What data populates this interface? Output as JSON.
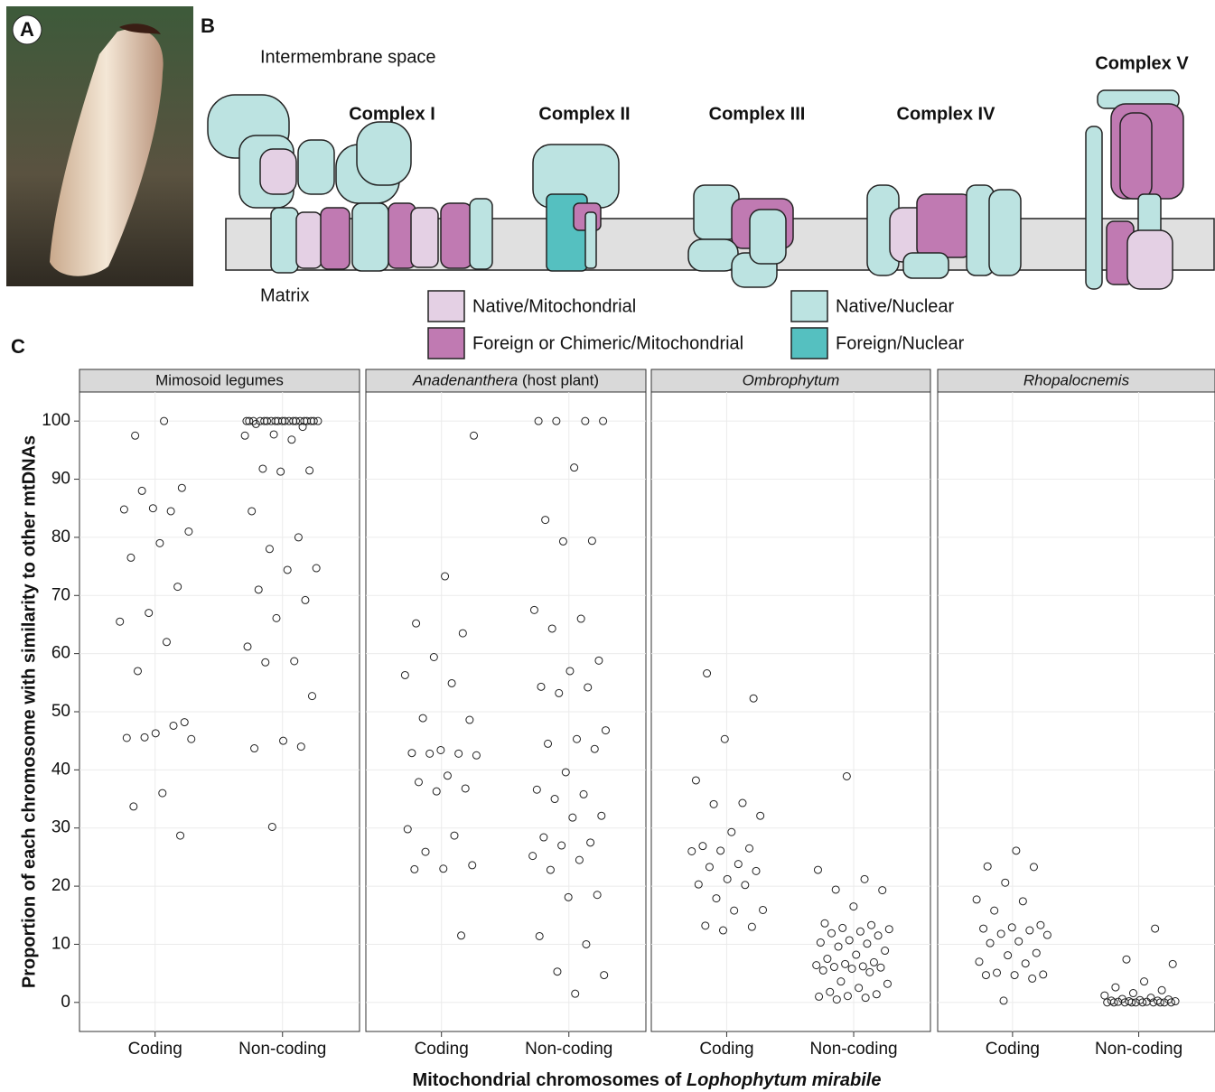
{
  "panel_labels": [
    "A",
    "B",
    "C"
  ],
  "diagram": {
    "intermembrane": "Intermembrane space",
    "matrix": "Matrix",
    "complexes": [
      "Complex I",
      "Complex II",
      "Complex III",
      "Complex IV",
      "Complex V"
    ],
    "legend": [
      {
        "label": "Native/Mitochondrial",
        "color": "#e4d0e4"
      },
      {
        "label": "Foreign or Chimeric/Mitochondrial",
        "color": "#c07ab2"
      },
      {
        "label": "Native/Nuclear",
        "color": "#bce3e1"
      },
      {
        "label": "Foreign/Nuclear",
        "color": "#55c0c0"
      }
    ]
  },
  "chart_data": {
    "type": "strip",
    "y_label": "Proportion of each chromosome with similarity to other mtDNAs",
    "x_label": [
      {
        "text": "Mitochondrial chromosomes of ",
        "italic": false
      },
      {
        "text": "Lophophytum mirabile",
        "italic": true
      }
    ],
    "categories": [
      "Coding",
      "Non-coding"
    ],
    "ylim": [
      -5,
      105
    ],
    "yticks": [
      0,
      10,
      20,
      30,
      40,
      50,
      60,
      70,
      80,
      90,
      100
    ],
    "grid": true,
    "facets": [
      {
        "title": [
          {
            "text": "Mimosoid legumes",
            "italic": false
          }
        ],
        "values": [
          [
            100,
            97.5,
            88.5,
            85,
            84.8,
            84.5,
            88,
            81,
            79,
            76.5,
            71.5,
            67,
            65.5,
            62,
            57,
            48.2,
            46.3,
            45.5,
            47.6,
            45.6,
            45.3,
            36,
            33.7,
            28.7
          ],
          [
            100,
            100,
            100,
            100,
            100,
            100,
            100,
            100,
            100,
            100,
            100,
            100,
            100,
            100,
            100,
            100,
            100,
            100,
            100,
            100,
            99.5,
            99,
            97.7,
            97.5,
            96.8,
            91.8,
            91.5,
            91.3,
            84.5,
            80,
            78,
            74.7,
            74.4,
            71,
            69.2,
            66.1,
            61.2,
            58.7,
            58.5,
            52.7,
            45,
            43.7,
            44,
            30.2
          ]
        ]
      },
      {
        "title": [
          {
            "text": "Anadenanthera",
            "italic": true
          },
          {
            "text": " (host plant)",
            "italic": false
          }
        ],
        "values": [
          [
            97.5,
            73.3,
            65.2,
            63.5,
            59.4,
            56.3,
            54.9,
            48.9,
            48.6,
            43.4,
            42.9,
            42.8,
            42.8,
            42.5,
            39,
            37.9,
            36.8,
            36.3,
            29.8,
            28.7,
            25.9,
            23.6,
            23,
            22.9,
            11.5
          ],
          [
            100,
            100,
            100,
            100,
            92,
            83,
            79.4,
            79.3,
            67.5,
            66,
            64.3,
            58.8,
            57,
            54.3,
            54.2,
            53.2,
            46.8,
            45.3,
            44.5,
            43.6,
            39.6,
            36.6,
            35.8,
            35,
            32.1,
            31.8,
            28.4,
            27.5,
            27,
            25.2,
            24.5,
            22.8,
            18.5,
            18.1,
            11.4,
            10,
            5.3,
            4.7,
            1.5
          ]
        ]
      },
      {
        "title": [
          {
            "text": "Ombrophytum",
            "italic": true
          }
        ],
        "values": [
          [
            56.6,
            52.3,
            45.3,
            38.2,
            34.3,
            34.1,
            32.1,
            29.3,
            26.9,
            26.5,
            26.1,
            26,
            23.8,
            23.3,
            22.6,
            21.2,
            20.3,
            20.2,
            17.9,
            15.9,
            15.8,
            13.2,
            13,
            12.4
          ],
          [
            38.9,
            22.8,
            21.2,
            19.4,
            19.3,
            16.5,
            13.6,
            13.3,
            12.8,
            12.6,
            12.2,
            11.9,
            11.5,
            10.7,
            10.3,
            10.1,
            9.6,
            8.9,
            8.2,
            7.5,
            6.9,
            6.6,
            6.4,
            6.2,
            6.1,
            6,
            5.8,
            5.5,
            5.2,
            3.6,
            3.2,
            2.5,
            1.8,
            1.4,
            1.1,
            1,
            0.8,
            0.5
          ]
        ]
      },
      {
        "title": [
          {
            "text": "Rhopalocnemis",
            "italic": true
          }
        ],
        "values": [
          [
            26.1,
            23.4,
            23.3,
            20.6,
            17.7,
            17.4,
            15.8,
            13.3,
            12.9,
            12.7,
            12.4,
            11.8,
            11.6,
            10.5,
            10.2,
            8.5,
            8.1,
            7,
            6.7,
            5.1,
            4.8,
            4.7,
            4.7,
            4.1,
            0.3
          ],
          [
            12.7,
            7.4,
            6.6,
            3.6,
            2.6,
            2.1,
            1.6,
            1.2,
            0.8,
            0.6,
            0.5,
            0.4,
            0.3,
            0.3,
            0.2,
            0.2,
            0.1,
            0.1,
            0,
            0,
            0,
            0,
            0,
            0,
            0,
            0,
            0,
            0
          ]
        ]
      }
    ]
  }
}
